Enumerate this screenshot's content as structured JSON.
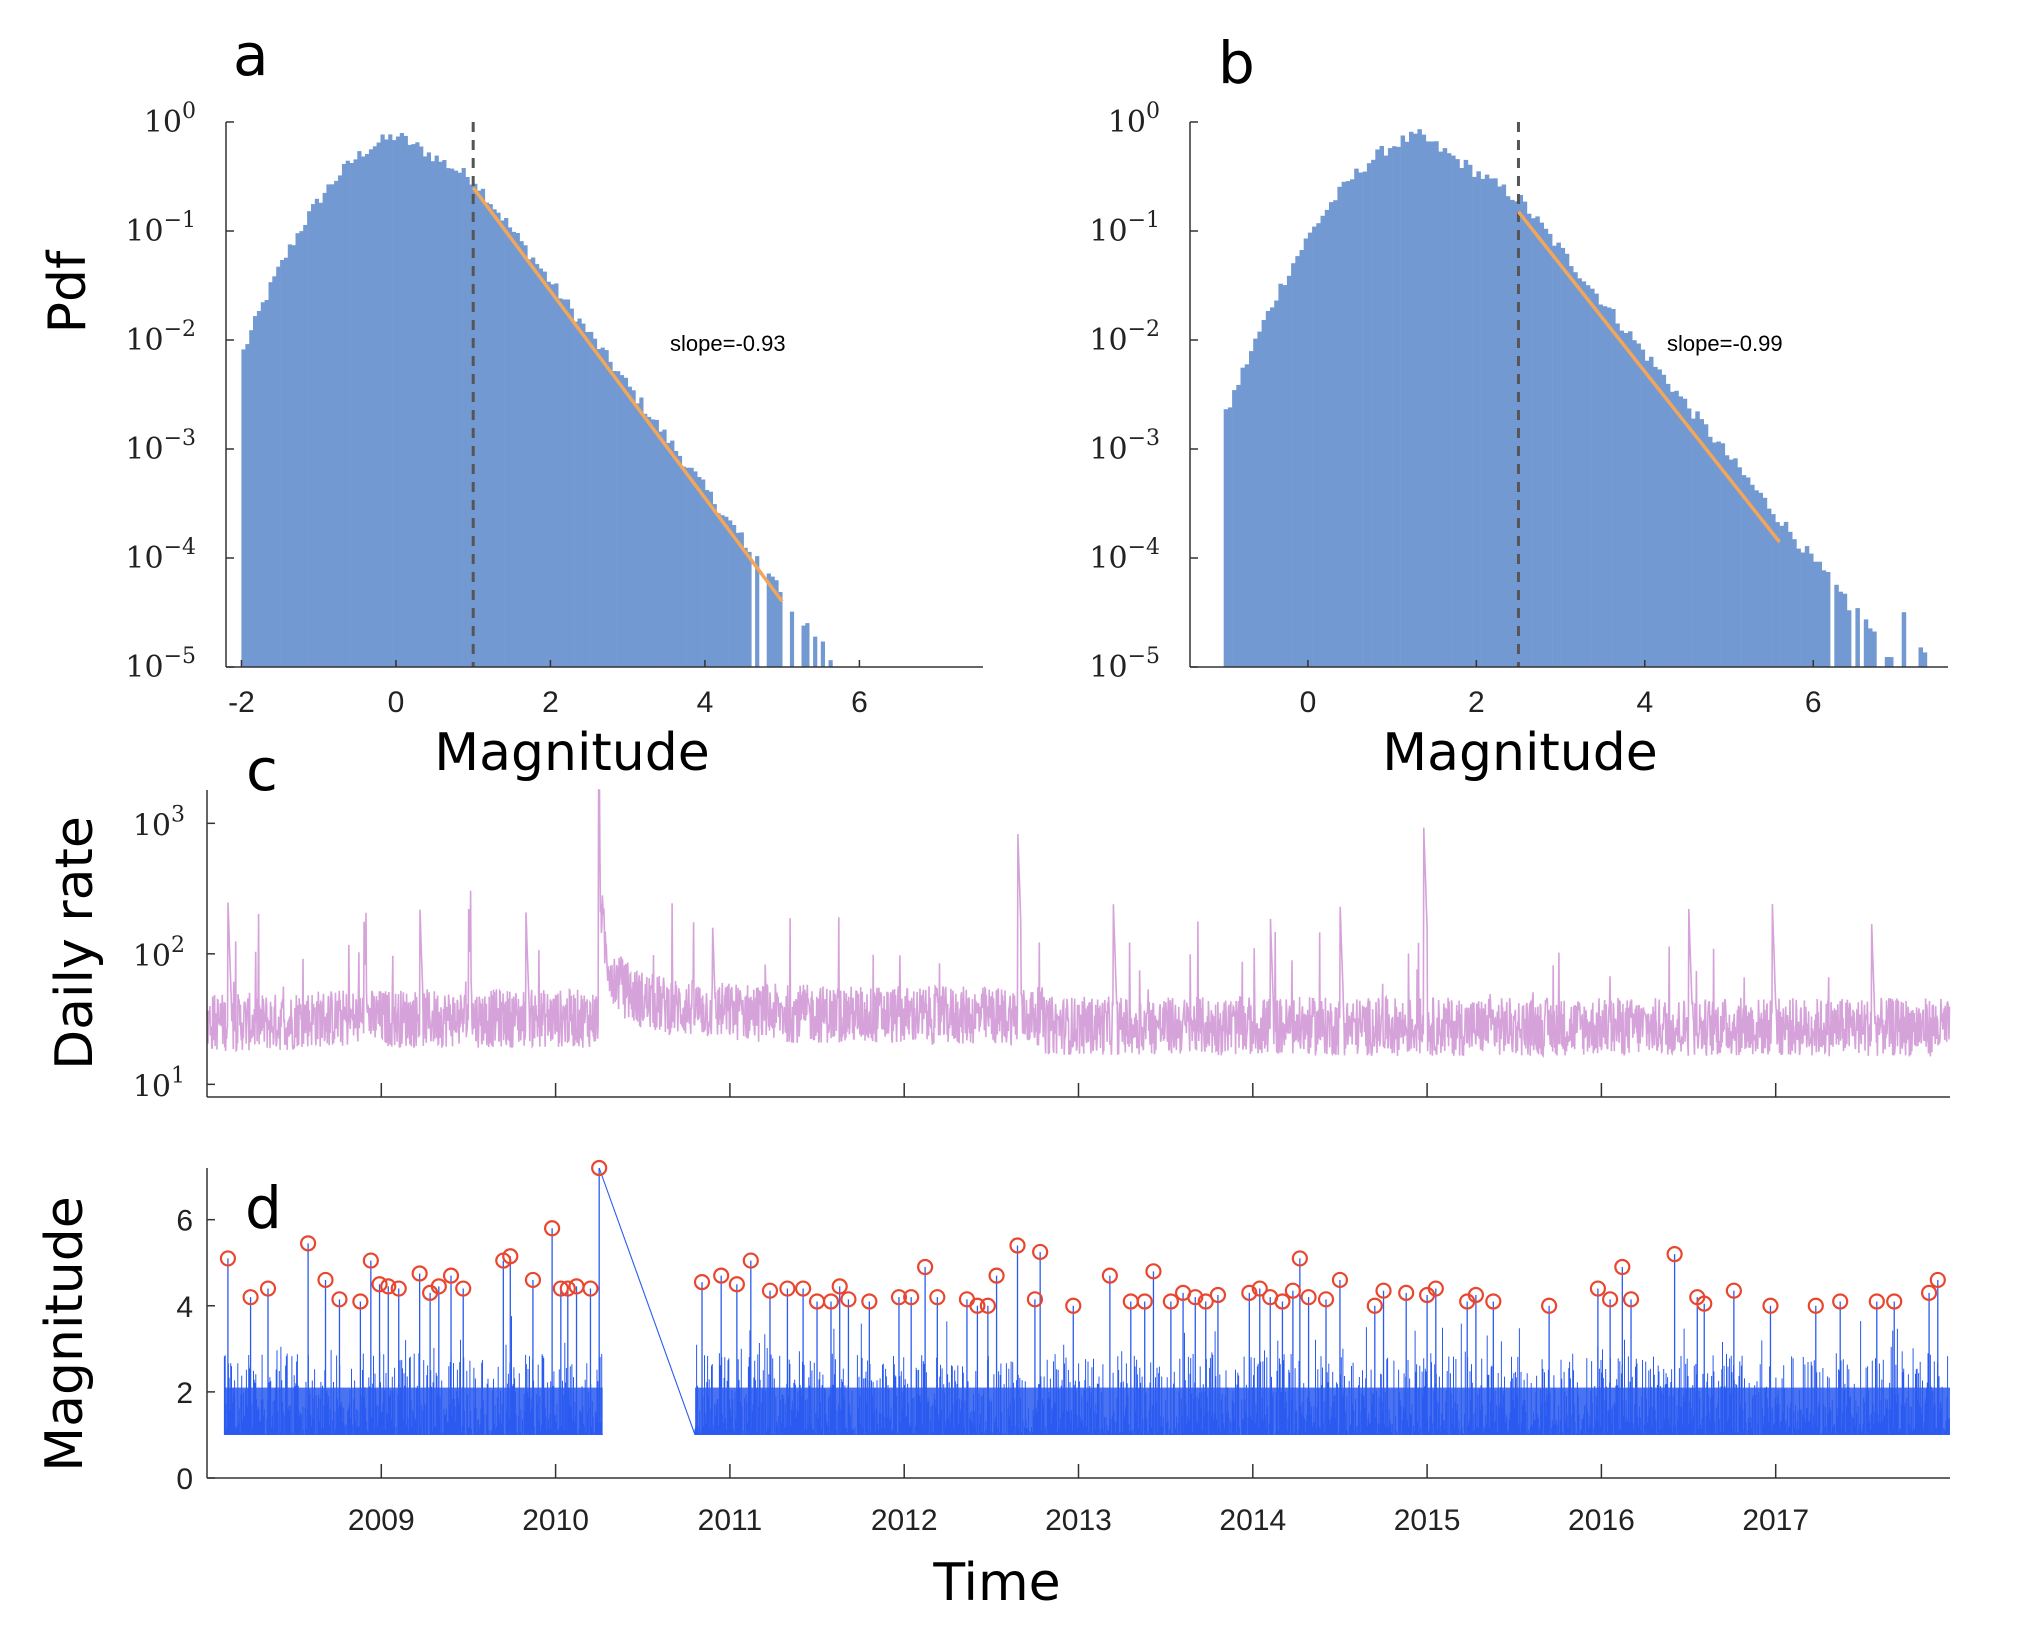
{
  "chart_data": [
    {
      "panel": "a",
      "type": "bar",
      "title": "",
      "xlabel": "Magnitude",
      "ylabel": "Pdf",
      "yscale": "log",
      "xlim": [
        -2.2,
        7.6
      ],
      "ylim": [
        1e-05,
        1
      ],
      "x_ticks": [
        "-2",
        "0",
        "2",
        "4",
        "6"
      ],
      "y_ticks": [
        {
          "base": "10",
          "exp": "0"
        },
        {
          "base": "10",
          "exp": "−1"
        },
        {
          "base": "10",
          "exp": "−2"
        },
        {
          "base": "10",
          "exp": "−3"
        },
        {
          "base": "10",
          "exp": "−4"
        },
        {
          "base": "10",
          "exp": "−5"
        }
      ],
      "histogram": {
        "mode": 0,
        "peak": 0.75,
        "start": -2.0,
        "cutoff_mc": 1.0,
        "tail_end": 5.6,
        "color": "#7399d2"
      },
      "threshold": 1.0,
      "fit": {
        "x": [
          1.0,
          5.0
        ],
        "y": [
          0.25,
          4e-05
        ],
        "color": "#f2a65a"
      },
      "annotation": "slope=-0.93"
    },
    {
      "panel": "b",
      "type": "bar",
      "title": "",
      "xlabel": "Magnitude",
      "ylabel": "",
      "yscale": "log",
      "xlim": [
        -1.4,
        7.6
      ],
      "ylim": [
        1e-05,
        1
      ],
      "x_ticks": [
        "0",
        "2",
        "4",
        "6"
      ],
      "y_ticks": [
        {
          "base": "10",
          "exp": "0"
        },
        {
          "base": "10",
          "exp": "−1"
        },
        {
          "base": "10",
          "exp": "−2"
        },
        {
          "base": "10",
          "exp": "−3"
        },
        {
          "base": "10",
          "exp": "−4"
        },
        {
          "base": "10",
          "exp": "−5"
        }
      ],
      "histogram": {
        "mode": 1.3,
        "peak": 0.75,
        "start": -1.0,
        "cutoff_mc": 2.5,
        "tail_end": 7.3,
        "color": "#7399d2"
      },
      "threshold": 2.5,
      "fit": {
        "x": [
          2.5,
          5.6
        ],
        "y": [
          0.15,
          0.00014
        ],
        "color": "#f2a65a"
      },
      "annotation": "slope=-0.99"
    },
    {
      "panel": "c",
      "type": "line",
      "title": "",
      "xlabel": "",
      "ylabel": "Daily rate",
      "yscale": "log",
      "xlim": [
        2008.0,
        2018.0
      ],
      "ylim": [
        8,
        1800
      ],
      "y_ticks": [
        {
          "base": "10",
          "exp": "3"
        },
        {
          "base": "10",
          "exp": "2"
        },
        {
          "base": "10",
          "exp": "1"
        }
      ],
      "color": "#d6a2da",
      "baseline": 32,
      "mainshock": {
        "t": 2010.25,
        "peak": 1800
      },
      "spikes": [
        {
          "t": 2008.12,
          "v": 260
        },
        {
          "t": 2008.9,
          "v": 200
        },
        {
          "t": 2009.22,
          "v": 260
        },
        {
          "t": 2009.5,
          "v": 250
        },
        {
          "t": 2009.83,
          "v": 210
        },
        {
          "t": 2010.9,
          "v": 180
        },
        {
          "t": 2012.65,
          "v": 1000
        },
        {
          "t": 2013.2,
          "v": 240
        },
        {
          "t": 2014.1,
          "v": 210
        },
        {
          "t": 2014.5,
          "v": 260
        },
        {
          "t": 2014.98,
          "v": 1000
        },
        {
          "t": 2016.5,
          "v": 250
        },
        {
          "t": 2016.98,
          "v": 260
        },
        {
          "t": 2017.55,
          "v": 180
        }
      ]
    },
    {
      "panel": "d",
      "type": "scatter",
      "title": "",
      "xlabel": "Time",
      "ylabel": "Magnitude",
      "xlim": [
        2008.0,
        2018.0
      ],
      "ylim": [
        0,
        7.2
      ],
      "y_ticks": [
        "0",
        "2",
        "4",
        "6"
      ],
      "x_ticks": [
        "2009",
        "2010",
        "2011",
        "2012",
        "2013",
        "2014",
        "2015",
        "2016",
        "2017"
      ],
      "catalog_min": 1.0,
      "stem_color": "#2a5bf0",
      "marker_color": "#e8462f",
      "gap": [
        2010.27,
        2010.8
      ],
      "large_events": [
        {
          "t": 2008.12,
          "m": 5.1
        },
        {
          "t": 2008.25,
          "m": 4.2
        },
        {
          "t": 2008.35,
          "m": 4.4
        },
        {
          "t": 2008.58,
          "m": 5.45
        },
        {
          "t": 2008.68,
          "m": 4.6
        },
        {
          "t": 2008.76,
          "m": 4.15
        },
        {
          "t": 2008.88,
          "m": 4.1
        },
        {
          "t": 2008.94,
          "m": 5.05
        },
        {
          "t": 2008.99,
          "m": 4.5
        },
        {
          "t": 2009.04,
          "m": 4.45
        },
        {
          "t": 2009.1,
          "m": 4.4
        },
        {
          "t": 2009.22,
          "m": 4.75
        },
        {
          "t": 2009.28,
          "m": 4.3
        },
        {
          "t": 2009.33,
          "m": 4.45
        },
        {
          "t": 2009.4,
          "m": 4.7
        },
        {
          "t": 2009.47,
          "m": 4.4
        },
        {
          "t": 2009.7,
          "m": 5.05
        },
        {
          "t": 2009.74,
          "m": 5.15
        },
        {
          "t": 2009.87,
          "m": 4.6
        },
        {
          "t": 2009.98,
          "m": 5.8
        },
        {
          "t": 2010.03,
          "m": 4.4
        },
        {
          "t": 2010.07,
          "m": 4.4
        },
        {
          "t": 2010.12,
          "m": 4.45
        },
        {
          "t": 2010.2,
          "m": 4.4
        },
        {
          "t": 2010.25,
          "m": 7.2
        },
        {
          "t": 2010.84,
          "m": 4.55
        },
        {
          "t": 2010.95,
          "m": 4.7
        },
        {
          "t": 2011.04,
          "m": 4.5
        },
        {
          "t": 2011.12,
          "m": 5.05
        },
        {
          "t": 2011.23,
          "m": 4.35
        },
        {
          "t": 2011.33,
          "m": 4.4
        },
        {
          "t": 2011.42,
          "m": 4.4
        },
        {
          "t": 2011.5,
          "m": 4.1
        },
        {
          "t": 2011.58,
          "m": 4.1
        },
        {
          "t": 2011.63,
          "m": 4.45
        },
        {
          "t": 2011.68,
          "m": 4.15
        },
        {
          "t": 2011.8,
          "m": 4.1
        },
        {
          "t": 2011.97,
          "m": 4.2
        },
        {
          "t": 2012.04,
          "m": 4.2
        },
        {
          "t": 2012.12,
          "m": 4.9
        },
        {
          "t": 2012.19,
          "m": 4.2
        },
        {
          "t": 2012.36,
          "m": 4.15
        },
        {
          "t": 2012.42,
          "m": 4.0
        },
        {
          "t": 2012.48,
          "m": 4.0
        },
        {
          "t": 2012.53,
          "m": 4.7
        },
        {
          "t": 2012.65,
          "m": 5.4
        },
        {
          "t": 2012.75,
          "m": 4.15
        },
        {
          "t": 2012.78,
          "m": 5.25
        },
        {
          "t": 2012.97,
          "m": 4.0
        },
        {
          "t": 2013.18,
          "m": 4.7
        },
        {
          "t": 2013.3,
          "m": 4.1
        },
        {
          "t": 2013.38,
          "m": 4.1
        },
        {
          "t": 2013.43,
          "m": 4.8
        },
        {
          "t": 2013.53,
          "m": 4.1
        },
        {
          "t": 2013.6,
          "m": 4.3
        },
        {
          "t": 2013.67,
          "m": 4.2
        },
        {
          "t": 2013.73,
          "m": 4.1
        },
        {
          "t": 2013.8,
          "m": 4.25
        },
        {
          "t": 2013.98,
          "m": 4.3
        },
        {
          "t": 2014.04,
          "m": 4.4
        },
        {
          "t": 2014.1,
          "m": 4.2
        },
        {
          "t": 2014.17,
          "m": 4.1
        },
        {
          "t": 2014.23,
          "m": 4.35
        },
        {
          "t": 2014.27,
          "m": 5.1
        },
        {
          "t": 2014.32,
          "m": 4.2
        },
        {
          "t": 2014.42,
          "m": 4.15
        },
        {
          "t": 2014.5,
          "m": 4.6
        },
        {
          "t": 2014.7,
          "m": 4.0
        },
        {
          "t": 2014.75,
          "m": 4.35
        },
        {
          "t": 2014.88,
          "m": 4.3
        },
        {
          "t": 2015.0,
          "m": 4.25
        },
        {
          "t": 2015.05,
          "m": 4.4
        },
        {
          "t": 2015.23,
          "m": 4.1
        },
        {
          "t": 2015.28,
          "m": 4.25
        },
        {
          "t": 2015.38,
          "m": 4.1
        },
        {
          "t": 2015.7,
          "m": 4.0
        },
        {
          "t": 2015.98,
          "m": 4.4
        },
        {
          "t": 2016.05,
          "m": 4.15
        },
        {
          "t": 2016.12,
          "m": 4.9
        },
        {
          "t": 2016.17,
          "m": 4.15
        },
        {
          "t": 2016.42,
          "m": 5.2
        },
        {
          "t": 2016.55,
          "m": 4.2
        },
        {
          "t": 2016.59,
          "m": 4.05
        },
        {
          "t": 2016.76,
          "m": 4.35
        },
        {
          "t": 2016.97,
          "m": 4.0
        },
        {
          "t": 2017.23,
          "m": 4.0
        },
        {
          "t": 2017.37,
          "m": 4.1
        },
        {
          "t": 2017.58,
          "m": 4.1
        },
        {
          "t": 2017.68,
          "m": 4.1
        },
        {
          "t": 2017.88,
          "m": 4.3
        },
        {
          "t": 2017.93,
          "m": 4.6
        }
      ]
    }
  ],
  "labels": {
    "panel_a": "a",
    "panel_b": "b",
    "panel_c": "c",
    "panel_d": "d"
  }
}
